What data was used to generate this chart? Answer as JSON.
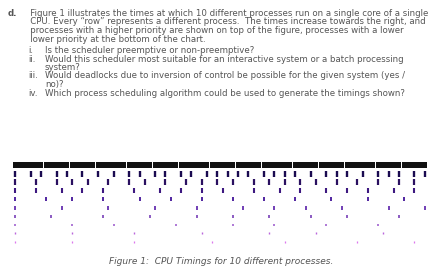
{
  "title": "Figure 1:  CPU Timings for 10 different processes.",
  "num_processes": 10,
  "num_slots": 80,
  "row_colors": [
    "#111111",
    "#1a0a50",
    "#2a1060",
    "#3d1880",
    "#5025a0",
    "#6630b0",
    "#7840b8",
    "#9955cc",
    "#bb66dd",
    "#dd77ee"
  ],
  "text_color": "#555555",
  "background_color": "#ffffff",
  "para_text": "d.  Figure 1 illustrates the times at which 10 different processes run on a single core of a single\n    CPU. Every “row” represents a different process.  The times increase towards the right, and\n    processes with a higher priority are shown on top of the figure, processes with a lower\n    lower priority at the bottom of the chart.",
  "items": [
    "i.   Is the scheduler preemptive or non-preemptive?",
    "ii.  Would this scheduler most suitable for an interactive system or a batch processing\n      system?",
    "iii. Would deadlocks due to inversion of control be possible for the given system (yes /\n      no)?",
    "iv.  Which process scheduling algorithm could be used to generate the timings shown?"
  ]
}
